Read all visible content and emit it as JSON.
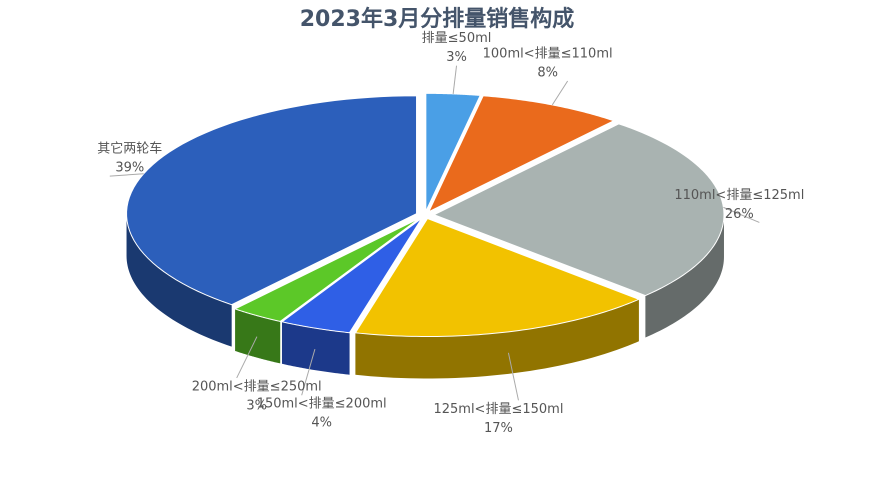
{
  "chart_data": {
    "type": "pie",
    "title": "2023年3月分排量销售构成",
    "categories": [
      "排量≤50ml",
      "100ml<排量≤110ml",
      "110ml<排量≤125ml",
      "125ml<排量≤150ml",
      "150ml<排量≤200ml",
      "200ml<排量≤250ml",
      "其它两轮车"
    ],
    "values": [
      3,
      8,
      26,
      17,
      4,
      3,
      39
    ],
    "value_labels": [
      "3%",
      "8%",
      "26%",
      "17%",
      "4%",
      "3%",
      "39%"
    ],
    "colors": [
      "#4a9fe6",
      "#ea6a1c",
      "#a9b3b1",
      "#f2c200",
      "#2f5fe6",
      "#5cc828",
      "#2c5fbb"
    ]
  }
}
